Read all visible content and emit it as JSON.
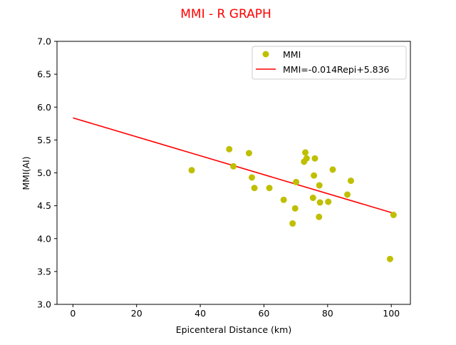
{
  "chart_data": {
    "type": "scatter",
    "title": "MMI - R GRAPH",
    "xlabel": "Epicenteral Distance (km)",
    "ylabel": "MMI(AI)",
    "xlim": [
      -5,
      106
    ],
    "ylim": [
      3.0,
      7.0
    ],
    "xticks": [
      0,
      20,
      40,
      60,
      80,
      100
    ],
    "xtick_labels": [
      "0",
      "20",
      "40",
      "60",
      "80",
      "100"
    ],
    "yticks": [
      3.0,
      3.5,
      4.0,
      4.5,
      5.0,
      5.5,
      6.0,
      6.5,
      7.0
    ],
    "ytick_labels": [
      "3.0",
      "3.5",
      "4.0",
      "4.5",
      "5.0",
      "5.5",
      "6.0",
      "6.5",
      "7.0"
    ],
    "grid": false,
    "legend_position": "top-right",
    "colors": {
      "points": "#bfbf00",
      "fit": "#ff0000",
      "title": "#ff0000"
    },
    "series": [
      {
        "name": "MMI",
        "kind": "scatter",
        "x": [
          37.3,
          49.1,
          50.4,
          55.3,
          56.2,
          57.0,
          61.7,
          66.2,
          69.0,
          69.8,
          70.1,
          72.6,
          73.0,
          73.4,
          75.4,
          75.7,
          76.0,
          77.3,
          77.4,
          77.6,
          80.2,
          81.6,
          86.2,
          87.3,
          99.6,
          100.7
        ],
        "y": [
          5.04,
          5.36,
          5.1,
          5.3,
          4.93,
          4.77,
          4.77,
          4.59,
          4.23,
          4.46,
          4.86,
          5.17,
          5.31,
          5.22,
          4.62,
          4.96,
          5.22,
          4.33,
          4.81,
          4.55,
          4.56,
          5.05,
          4.67,
          4.88,
          3.69,
          4.36
        ]
      },
      {
        "name": "MMI=-0.014Repi+5.836",
        "kind": "line",
        "x": [
          0,
          100.7
        ],
        "y": [
          5.836,
          4.386
        ]
      }
    ]
  }
}
